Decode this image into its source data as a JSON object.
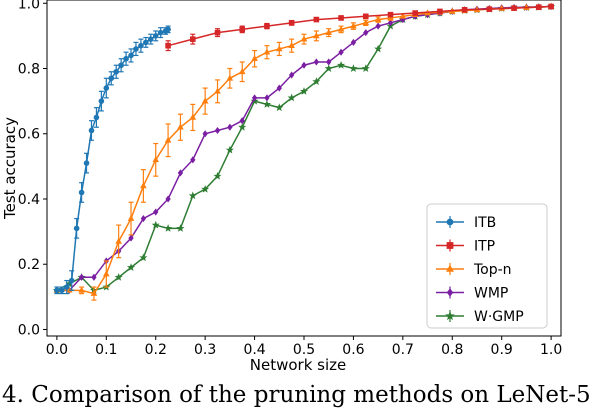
{
  "chart_data": {
    "type": "line",
    "xlabel": "Network size",
    "ylabel": "Test accuracy",
    "xlim": [
      -0.02,
      1.02
    ],
    "ylim": [
      -0.02,
      1.01
    ],
    "xticks": [
      0.0,
      0.1,
      0.2,
      0.3,
      0.4,
      0.5,
      0.6,
      0.7,
      0.8,
      0.9,
      1.0
    ],
    "xtick_labels": [
      "0.0",
      "0.1",
      "0.2",
      "0.3",
      "0.4",
      "0.5",
      "0.6",
      "0.7",
      "0.8",
      "0.9",
      "1.0"
    ],
    "yticks": [
      0.0,
      0.2,
      0.4,
      0.6,
      0.8,
      1.0
    ],
    "ytick_labels": [
      "0.0",
      "0.2",
      "0.4",
      "0.6",
      "0.8",
      "1.0"
    ],
    "legend_position": "bottom-right",
    "series": [
      {
        "name": "ITB",
        "color": "#1f77b4",
        "marker": "circle",
        "x": [
          0.0,
          0.01,
          0.02,
          0.03,
          0.04,
          0.05,
          0.06,
          0.07,
          0.08,
          0.09,
          0.1,
          0.11,
          0.12,
          0.13,
          0.14,
          0.15,
          0.16,
          0.17,
          0.18,
          0.19,
          0.2,
          0.21,
          0.22,
          0.225
        ],
        "y": [
          0.12,
          0.12,
          0.13,
          0.15,
          0.31,
          0.42,
          0.51,
          0.61,
          0.65,
          0.7,
          0.74,
          0.77,
          0.79,
          0.81,
          0.83,
          0.84,
          0.86,
          0.87,
          0.88,
          0.89,
          0.9,
          0.91,
          0.915,
          0.92
        ],
        "err": [
          0.01,
          0.01,
          0.02,
          0.03,
          0.03,
          0.03,
          0.03,
          0.03,
          0.03,
          0.03,
          0.03,
          0.02,
          0.02,
          0.02,
          0.02,
          0.02,
          0.02,
          0.02,
          0.015,
          0.015,
          0.015,
          0.015,
          0.01,
          0.01
        ]
      },
      {
        "name": "ITP",
        "color": "#d62728",
        "marker": "square",
        "x": [
          0.225,
          0.275,
          0.325,
          0.375,
          0.425,
          0.475,
          0.525,
          0.575,
          0.625,
          0.675,
          0.725,
          0.775,
          0.825,
          0.875,
          0.925,
          0.975,
          1.0
        ],
        "y": [
          0.87,
          0.89,
          0.91,
          0.92,
          0.93,
          0.94,
          0.95,
          0.955,
          0.96,
          0.965,
          0.97,
          0.975,
          0.98,
          0.982,
          0.985,
          0.988,
          0.99
        ],
        "err": [
          0.015,
          0.015,
          0.012,
          0.01,
          0.008,
          0.007,
          0.006,
          0.005,
          0.005,
          0.005,
          0.004,
          0.004,
          0.004,
          0.004,
          0.003,
          0.003,
          0.003
        ]
      },
      {
        "name": "Top-n",
        "color": "#ff7f0e",
        "marker": "triangle",
        "x": [
          0.0,
          0.025,
          0.05,
          0.075,
          0.1,
          0.125,
          0.15,
          0.175,
          0.2,
          0.225,
          0.25,
          0.275,
          0.3,
          0.325,
          0.35,
          0.375,
          0.4,
          0.425,
          0.45,
          0.475,
          0.5,
          0.525,
          0.55,
          0.575,
          0.6,
          0.625,
          0.65,
          0.675,
          0.7,
          0.725,
          0.75,
          0.775,
          0.8,
          0.825,
          0.85,
          0.875,
          0.9,
          0.925,
          0.95,
          0.975,
          1.0
        ],
        "y": [
          0.12,
          0.12,
          0.12,
          0.11,
          0.17,
          0.27,
          0.34,
          0.44,
          0.52,
          0.58,
          0.62,
          0.65,
          0.7,
          0.73,
          0.77,
          0.79,
          0.83,
          0.85,
          0.86,
          0.87,
          0.89,
          0.9,
          0.91,
          0.92,
          0.93,
          0.94,
          0.95,
          0.955,
          0.96,
          0.965,
          0.97,
          0.972,
          0.975,
          0.977,
          0.98,
          0.982,
          0.984,
          0.985,
          0.987,
          0.988,
          0.99
        ],
        "err": [
          0.005,
          0.005,
          0.01,
          0.02,
          0.04,
          0.05,
          0.05,
          0.05,
          0.05,
          0.05,
          0.04,
          0.04,
          0.04,
          0.035,
          0.03,
          0.03,
          0.025,
          0.02,
          0.02,
          0.02,
          0.015,
          0.015,
          0.012,
          0.01,
          0.01,
          0.008,
          0.008,
          0.007,
          0.006,
          0.006,
          0.005,
          0.005,
          0.005,
          0.004,
          0.004,
          0.004,
          0.003,
          0.003,
          0.003,
          0.003,
          0.003
        ]
      },
      {
        "name": "WMP",
        "color": "#7b1fa2",
        "marker": "diamond",
        "x": [
          0.0,
          0.025,
          0.05,
          0.075,
          0.1,
          0.125,
          0.15,
          0.175,
          0.2,
          0.225,
          0.25,
          0.275,
          0.3,
          0.325,
          0.35,
          0.375,
          0.4,
          0.425,
          0.45,
          0.475,
          0.5,
          0.525,
          0.55,
          0.575,
          0.6,
          0.625,
          0.65,
          0.675,
          0.7,
          0.725,
          0.75,
          0.775,
          0.8,
          0.825,
          0.85,
          0.875,
          0.9,
          0.925,
          0.95,
          0.975,
          1.0
        ],
        "y": [
          0.12,
          0.12,
          0.16,
          0.16,
          0.21,
          0.24,
          0.28,
          0.34,
          0.36,
          0.4,
          0.48,
          0.52,
          0.6,
          0.61,
          0.62,
          0.64,
          0.71,
          0.71,
          0.74,
          0.78,
          0.81,
          0.82,
          0.82,
          0.85,
          0.88,
          0.91,
          0.93,
          0.94,
          0.95,
          0.96,
          0.965,
          0.97,
          0.975,
          0.98,
          0.982,
          0.984,
          0.986,
          0.987,
          0.988,
          0.989,
          0.99
        ],
        "err": [
          0.005,
          0.005,
          0.005,
          0.005,
          0.005,
          0.005,
          0.005,
          0.005,
          0.005,
          0.005,
          0.005,
          0.005,
          0.005,
          0.005,
          0.005,
          0.005,
          0.005,
          0.005,
          0.005,
          0.005,
          0.005,
          0.005,
          0.005,
          0.005,
          0.005,
          0.005,
          0.005,
          0.005,
          0.005,
          0.005,
          0.005,
          0.005,
          0.005,
          0.005,
          0.005,
          0.005,
          0.005,
          0.005,
          0.005,
          0.005,
          0.005
        ]
      },
      {
        "name": "W·GMP",
        "color": "#2e7d32",
        "marker": "star",
        "x": [
          0.0,
          0.025,
          0.05,
          0.075,
          0.1,
          0.125,
          0.15,
          0.175,
          0.2,
          0.225,
          0.25,
          0.275,
          0.3,
          0.325,
          0.35,
          0.375,
          0.4,
          0.425,
          0.45,
          0.475,
          0.5,
          0.525,
          0.55,
          0.575,
          0.6,
          0.625,
          0.65,
          0.675,
          0.7,
          0.725,
          0.75,
          0.775,
          0.8,
          0.825,
          0.85,
          0.875,
          0.9,
          0.925,
          0.95,
          0.975,
          1.0
        ],
        "y": [
          0.12,
          0.14,
          0.16,
          0.12,
          0.13,
          0.16,
          0.19,
          0.22,
          0.32,
          0.31,
          0.31,
          0.41,
          0.43,
          0.47,
          0.55,
          0.62,
          0.7,
          0.69,
          0.68,
          0.71,
          0.73,
          0.76,
          0.8,
          0.81,
          0.8,
          0.8,
          0.86,
          0.93,
          0.95,
          0.96,
          0.965,
          0.97,
          0.975,
          0.978,
          0.98,
          0.982,
          0.984,
          0.986,
          0.987,
          0.988,
          0.99
        ],
        "err": [
          0.005,
          0.005,
          0.005,
          0.005,
          0.005,
          0.005,
          0.005,
          0.005,
          0.005,
          0.005,
          0.005,
          0.005,
          0.005,
          0.005,
          0.005,
          0.005,
          0.005,
          0.005,
          0.005,
          0.005,
          0.005,
          0.005,
          0.005,
          0.005,
          0.005,
          0.005,
          0.005,
          0.005,
          0.005,
          0.005,
          0.005,
          0.005,
          0.005,
          0.005,
          0.005,
          0.005,
          0.005,
          0.005,
          0.005,
          0.005,
          0.005
        ]
      }
    ]
  },
  "caption": "4. Comparison of the pruning methods on LeNet-5"
}
